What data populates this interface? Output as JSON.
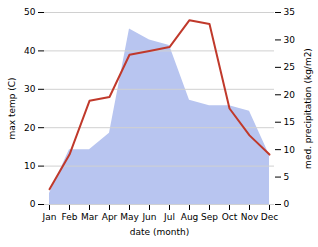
{
  "chart_data": {
    "type": "line",
    "categories": [
      "Jan",
      "Feb",
      "Mar",
      "Apr",
      "May",
      "Jun",
      "Jul",
      "Aug",
      "Sep",
      "Oct",
      "Nov",
      "Dec"
    ],
    "series": [
      {
        "type": "area",
        "axis": "y2",
        "color": "#b8c5f0",
        "values": [
          2,
          10,
          10,
          13,
          32,
          30,
          29,
          19,
          18,
          18,
          17,
          9
        ]
      },
      {
        "type": "line",
        "color": "#c0392b",
        "values": [
          4,
          13,
          27,
          28,
          39,
          40,
          41,
          48,
          47,
          25,
          18,
          13
        ]
      }
    ],
    "xlabel": "date (month)",
    "ylabel": "max temp (C)",
    "y2label": "med. precipitation (kg/m2)",
    "ylim": [
      0,
      50
    ],
    "yticks": [
      0,
      10,
      20,
      30,
      40,
      50
    ],
    "y2lim": [
      0,
      35
    ],
    "y2ticks": [
      0,
      5,
      10,
      15,
      20,
      25,
      30,
      35
    ],
    "grid": true
  }
}
